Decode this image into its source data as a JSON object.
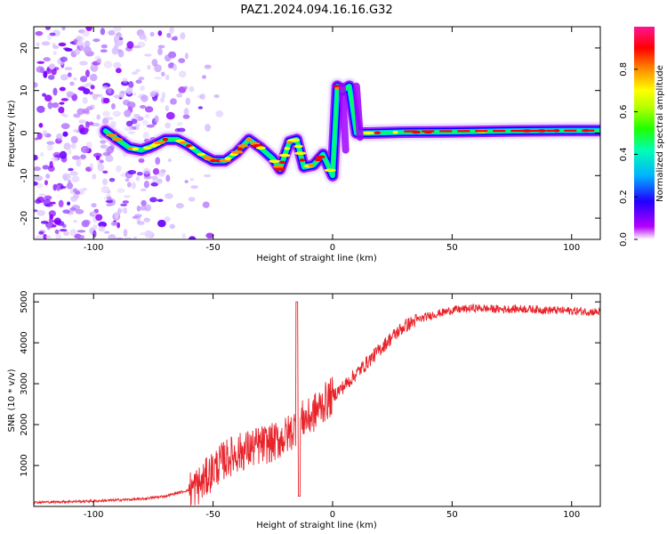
{
  "figure_title": "PAZ1.2024.094.16.16.G32",
  "colors": {
    "snr_line": "#e8232a",
    "axis": "#000000",
    "rainbow": [
      "#ffffff",
      "#a000ff",
      "#0000ff",
      "#00c8ff",
      "#00ff64",
      "#96ff00",
      "#ffff00",
      "#ff8c00",
      "#ff0000",
      "#ff1493"
    ]
  },
  "chart_data": [
    {
      "type": "heatmap",
      "title": "",
      "xlabel": "Height of straight line (km)",
      "ylabel": "Frequency (Hz)",
      "xlim": [
        -125,
        112
      ],
      "ylim": [
        -25,
        25
      ],
      "x_ticks": [
        -100,
        -50,
        0,
        50,
        100
      ],
      "y_ticks": [
        -20,
        -10,
        0,
        10,
        20
      ],
      "colorbar": {
        "label": "Normalized spectral amplitude",
        "range": [
          0,
          1
        ],
        "ticks": [
          0.0,
          0.2,
          0.4,
          0.6,
          0.8
        ]
      },
      "ridge_frequency_hz": {
        "x_km": [
          -95,
          -90,
          -85,
          -80,
          -75,
          -70,
          -65,
          -60,
          -55,
          -50,
          -45,
          -40,
          -35,
          -30,
          -25,
          -22,
          -18,
          -15,
          -12,
          -8,
          -4,
          0,
          2,
          4,
          7,
          10,
          15,
          30,
          50,
          75,
          100,
          112
        ],
        "freq": [
          0.5,
          -1.5,
          -3.5,
          -4,
          -3,
          -1.5,
          -1.5,
          -3,
          -5,
          -6.5,
          -6.5,
          -4.5,
          -1.5,
          -3.5,
          -6,
          -8.5,
          -2,
          -1.5,
          -8,
          -7.5,
          -5,
          -10,
          11,
          10,
          11,
          0,
          0,
          0.2,
          0.3,
          0.5,
          0.6,
          0.6
        ]
      },
      "noise_region_x_km": [
        -125,
        -90
      ]
    },
    {
      "type": "line",
      "title": "",
      "xlabel": "Height of straight line (km)",
      "ylabel": "SNR (10 * v/v)",
      "xlim": [
        -125,
        112
      ],
      "ylim": [
        0,
        5200
      ],
      "x_ticks": [
        -100,
        -50,
        0,
        50,
        100
      ],
      "y_ticks": [
        1000,
        2000,
        3000,
        4000,
        5000
      ],
      "series": [
        {
          "x": [
            -125,
            -100,
            -80,
            -70,
            -60,
            -55,
            -50,
            -45,
            -40,
            -35,
            -30,
            -25,
            -20,
            -17,
            -15,
            -12,
            -10,
            -5,
            0,
            5,
            10,
            15,
            20,
            25,
            30,
            35,
            40,
            50,
            60,
            70,
            80,
            90,
            100,
            112
          ],
          "y": [
            100,
            130,
            180,
            250,
            400,
            550,
            900,
            1150,
            1300,
            1400,
            1500,
            1550,
            1700,
            1850,
            2000,
            2150,
            2150,
            2450,
            2700,
            2950,
            3250,
            3550,
            3850,
            4150,
            4400,
            4550,
            4650,
            4800,
            4850,
            4820,
            4830,
            4800,
            4780,
            4750
          ]
        }
      ]
    }
  ]
}
